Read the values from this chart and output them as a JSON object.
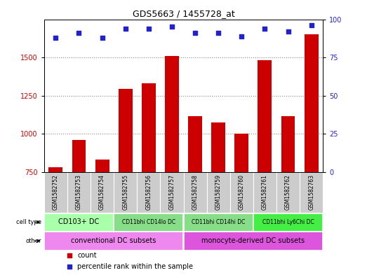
{
  "title": "GDS5663 / 1455728_at",
  "samples": [
    "GSM1582752",
    "GSM1582753",
    "GSM1582754",
    "GSM1582755",
    "GSM1582756",
    "GSM1582757",
    "GSM1582758",
    "GSM1582759",
    "GSM1582760",
    "GSM1582761",
    "GSM1582762",
    "GSM1582763"
  ],
  "counts": [
    780,
    960,
    830,
    1295,
    1330,
    1510,
    1115,
    1075,
    1000,
    1480,
    1115,
    1650
  ],
  "percentiles": [
    88,
    91,
    88,
    94,
    94,
    95,
    91,
    91,
    89,
    94,
    92,
    96
  ],
  "ylim_left": [
    750,
    1750
  ],
  "ylim_right": [
    0,
    100
  ],
  "yticks_left": [
    750,
    1000,
    1250,
    1500
  ],
  "yticks_right": [
    0,
    25,
    50,
    75,
    100
  ],
  "bar_color": "#cc0000",
  "dot_color": "#2222cc",
  "grid_color": "#888888",
  "cell_type_groups": [
    {
      "label": "CD103+ DC",
      "start": 0,
      "end": 3,
      "color": "#aaffaa"
    },
    {
      "label": "CD11bhi CD14lo DC",
      "start": 3,
      "end": 6,
      "color": "#88dd88"
    },
    {
      "label": "CD11bhi CD14hi DC",
      "start": 6,
      "end": 9,
      "color": "#88dd88"
    },
    {
      "label": "CD11bhi Ly6Chi DC",
      "start": 9,
      "end": 12,
      "color": "#44ee44"
    }
  ],
  "other_groups": [
    {
      "label": "conventional DC subsets",
      "start": 0,
      "end": 6,
      "color": "#ee88ee"
    },
    {
      "label": "monocyte-derived DC subsets",
      "start": 6,
      "end": 12,
      "color": "#dd55dd"
    }
  ],
  "bg_color": "#ffffff",
  "sample_bg": "#cccccc",
  "bar_bottom": 750
}
